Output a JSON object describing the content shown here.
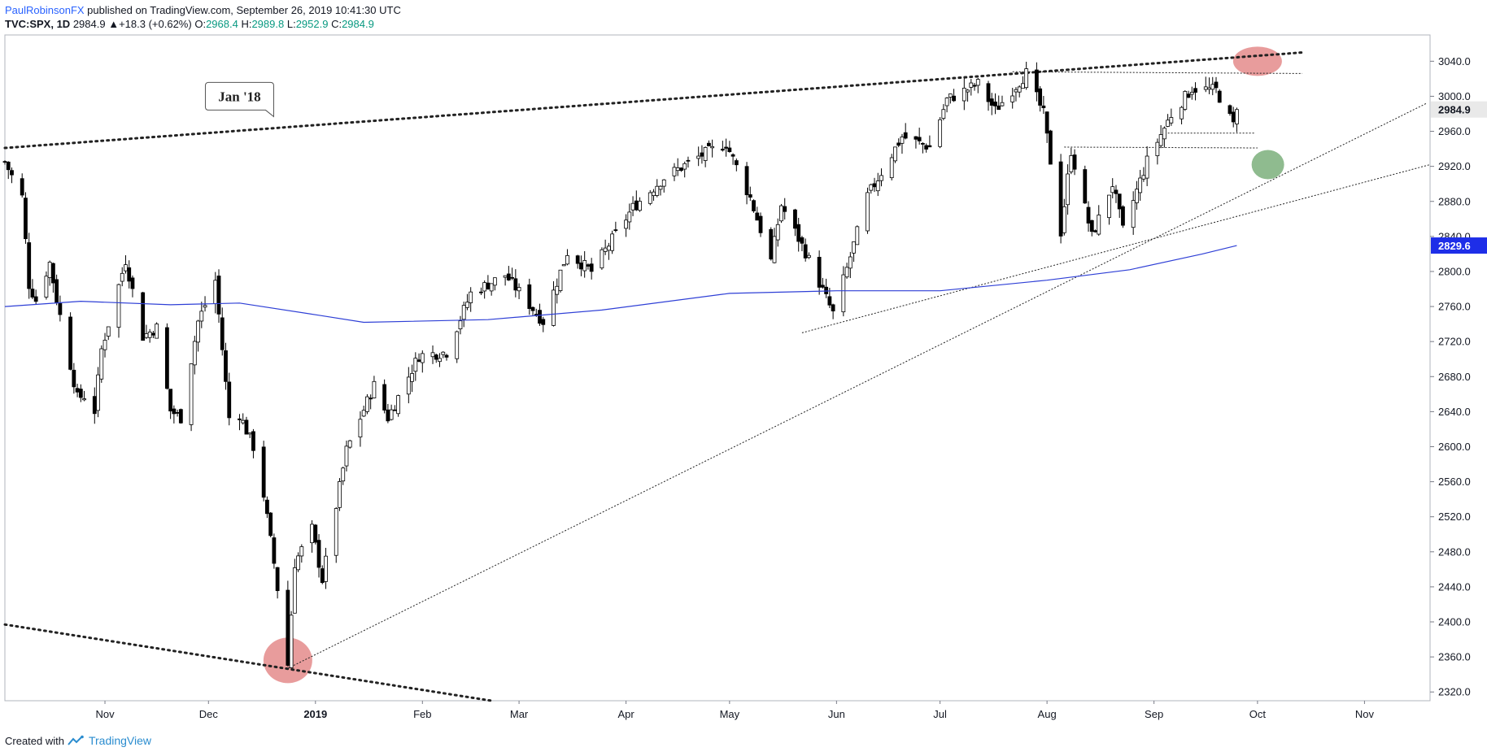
{
  "header": {
    "author": "PaulRobinsonFX",
    "published": " published on TradingView.com, September 26, 2019 10:41:30 UTC"
  },
  "quote": {
    "symbol": "TVC:SPX, 1D",
    "last": "2984.9",
    "change": "+18.3 (+0.62%)",
    "open_label": "O:",
    "open": "2968.4",
    "high_label": "H:",
    "high": "2989.8",
    "low_label": "L:",
    "low": "2952.9",
    "close_label": "C:",
    "close": "2984.9"
  },
  "footer": {
    "created_with": "Created with",
    "brand": "TradingView"
  },
  "colors": {
    "ma_line": "#2e3fd6",
    "last_price_badge": "#e9e9e9",
    "ma_badge": "#1e2ee8",
    "red_highlight": "#e07b7b",
    "green_highlight": "#6aa46a"
  },
  "chart_data": {
    "type": "candlestick",
    "title": "",
    "ylim": [
      2310,
      3070
    ],
    "y_ticks": [
      2320,
      2360,
      2400,
      2440,
      2480,
      2520,
      2560,
      2600,
      2640,
      2680,
      2720,
      2760,
      2800,
      2840,
      2880,
      2920,
      2960,
      3000,
      3040
    ],
    "x_ticks": [
      {
        "label": "Nov",
        "date": "2018-11-01"
      },
      {
        "label": "Dec",
        "date": "2018-12-01"
      },
      {
        "label": "2019",
        "date": "2019-01-01",
        "bold": true
      },
      {
        "label": "Feb",
        "date": "2019-02-01"
      },
      {
        "label": "Mar",
        "date": "2019-03-01"
      },
      {
        "label": "Apr",
        "date": "2019-04-01"
      },
      {
        "label": "May",
        "date": "2019-05-01"
      },
      {
        "label": "Jun",
        "date": "2019-06-01"
      },
      {
        "label": "Jul",
        "date": "2019-07-01"
      },
      {
        "label": "Aug",
        "date": "2019-08-01"
      },
      {
        "label": "Sep",
        "date": "2019-09-01"
      },
      {
        "label": "Oct",
        "date": "2019-10-01"
      },
      {
        "label": "Nov",
        "date": "2019-11-01"
      }
    ],
    "xlim": [
      "2018-10-03",
      "2019-11-20"
    ],
    "close_path": [
      [
        "2018-10-03",
        2925
      ],
      [
        "2018-10-08",
        2885
      ],
      [
        "2018-10-10",
        2785
      ],
      [
        "2018-10-12",
        2767
      ],
      [
        "2018-10-16",
        2810
      ],
      [
        "2018-10-18",
        2768
      ],
      [
        "2018-10-24",
        2656
      ],
      [
        "2018-10-26",
        2658
      ],
      [
        "2018-10-29",
        2641
      ],
      [
        "2018-10-31",
        2711
      ],
      [
        "2018-11-07",
        2813
      ],
      [
        "2018-11-12",
        2726
      ],
      [
        "2018-11-16",
        2736
      ],
      [
        "2018-11-20",
        2641
      ],
      [
        "2018-11-23",
        2633
      ],
      [
        "2018-11-28",
        2743
      ],
      [
        "2018-12-03",
        2790
      ],
      [
        "2018-12-07",
        2633
      ],
      [
        "2018-12-10",
        2637
      ],
      [
        "2018-12-14",
        2600
      ],
      [
        "2018-12-17",
        2545
      ],
      [
        "2018-12-20",
        2467
      ],
      [
        "2018-12-24",
        2351
      ],
      [
        "2018-12-26",
        2467
      ],
      [
        "2018-12-31",
        2506
      ],
      [
        "2019-01-03",
        2448
      ],
      [
        "2019-01-10",
        2596
      ],
      [
        "2019-01-18",
        2670
      ],
      [
        "2019-01-22",
        2633
      ],
      [
        "2019-01-31",
        2704
      ],
      [
        "2019-02-08",
        2708
      ],
      [
        "2019-02-15",
        2775
      ],
      [
        "2019-02-25",
        2796
      ],
      [
        "2019-03-08",
        2743
      ],
      [
        "2019-03-15",
        2822
      ],
      [
        "2019-03-22",
        2800
      ],
      [
        "2019-04-03",
        2873
      ],
      [
        "2019-04-12",
        2907
      ],
      [
        "2019-04-23",
        2933
      ],
      [
        "2019-04-30",
        2946
      ],
      [
        "2019-05-07",
        2884
      ],
      [
        "2019-05-13",
        2812
      ],
      [
        "2019-05-16",
        2876
      ],
      [
        "2019-05-23",
        2822
      ],
      [
        "2019-05-31",
        2752
      ],
      [
        "2019-06-04",
        2803
      ],
      [
        "2019-06-10",
        2886
      ],
      [
        "2019-06-20",
        2954
      ],
      [
        "2019-06-28",
        2942
      ],
      [
        "2019-07-03",
        2996
      ],
      [
        "2019-07-12",
        3014
      ],
      [
        "2019-07-17",
        2984
      ],
      [
        "2019-07-26",
        3026
      ],
      [
        "2019-07-31",
        2980
      ],
      [
        "2019-08-05",
        2845
      ],
      [
        "2019-08-08",
        2938
      ],
      [
        "2019-08-14",
        2840
      ],
      [
        "2019-08-20",
        2900
      ],
      [
        "2019-08-23",
        2847
      ],
      [
        "2019-08-30",
        2926
      ],
      [
        "2019-09-06",
        2979
      ],
      [
        "2019-09-12",
        3009
      ],
      [
        "2019-09-19",
        3007
      ],
      [
        "2019-09-24",
        2967
      ],
      [
        "2019-09-25",
        2984.9
      ]
    ],
    "moving_average_200": {
      "last_value": "2829.6",
      "points": [
        [
          "2018-10-03",
          2760
        ],
        [
          "2018-10-25",
          2766
        ],
        [
          "2018-11-20",
          2762
        ],
        [
          "2018-12-10",
          2764
        ],
        [
          "2019-01-02",
          2750
        ],
        [
          "2019-01-15",
          2742
        ],
        [
          "2019-02-20",
          2745
        ],
        [
          "2019-03-25",
          2756
        ],
        [
          "2019-05-01",
          2775
        ],
        [
          "2019-06-01",
          2778
        ],
        [
          "2019-07-01",
          2778
        ],
        [
          "2019-08-01",
          2790
        ],
        [
          "2019-08-25",
          2802
        ],
        [
          "2019-09-15",
          2820
        ],
        [
          "2019-09-25",
          2829.6
        ]
      ]
    },
    "last_price_label": "2984.9",
    "annotations": [
      {
        "type": "callout",
        "text": "Jan '18",
        "date": "2018-12-10",
        "price": 3000
      }
    ],
    "trendlines": [
      {
        "style": "dotted-heavy",
        "from": [
          "2018-10-03",
          2941
        ],
        "to": [
          "2019-10-14",
          3050
        ]
      },
      {
        "style": "dotted-heavy",
        "from": [
          "2018-10-03",
          2397
        ],
        "to": [
          "2019-02-21",
          2310
        ]
      },
      {
        "style": "dotted-thin",
        "from": [
          "2018-12-24",
          2347
        ],
        "to": [
          "2019-11-19",
          2992
        ]
      },
      {
        "style": "dotted-thin",
        "from": [
          "2019-05-22",
          2730
        ],
        "to": [
          "2019-11-20",
          2922
        ]
      },
      {
        "style": "dotted-thin",
        "from": [
          "2019-07-22",
          3028
        ],
        "to": [
          "2019-10-14",
          3026
        ]
      },
      {
        "style": "dotted-thin",
        "from": [
          "2019-08-06",
          2942
        ],
        "to": [
          "2019-10-01",
          2941
        ]
      },
      {
        "style": "dotted-thin",
        "from": [
          "2019-09-05",
          2958
        ],
        "to": [
          "2019-09-30",
          2958
        ]
      }
    ],
    "highlights": [
      {
        "color": "red",
        "date": "2019-10-01",
        "price": 3040
      },
      {
        "color": "green",
        "date": "2019-10-04",
        "price": 2922
      },
      {
        "color": "red",
        "date": "2018-12-24",
        "price": 2356
      }
    ]
  }
}
